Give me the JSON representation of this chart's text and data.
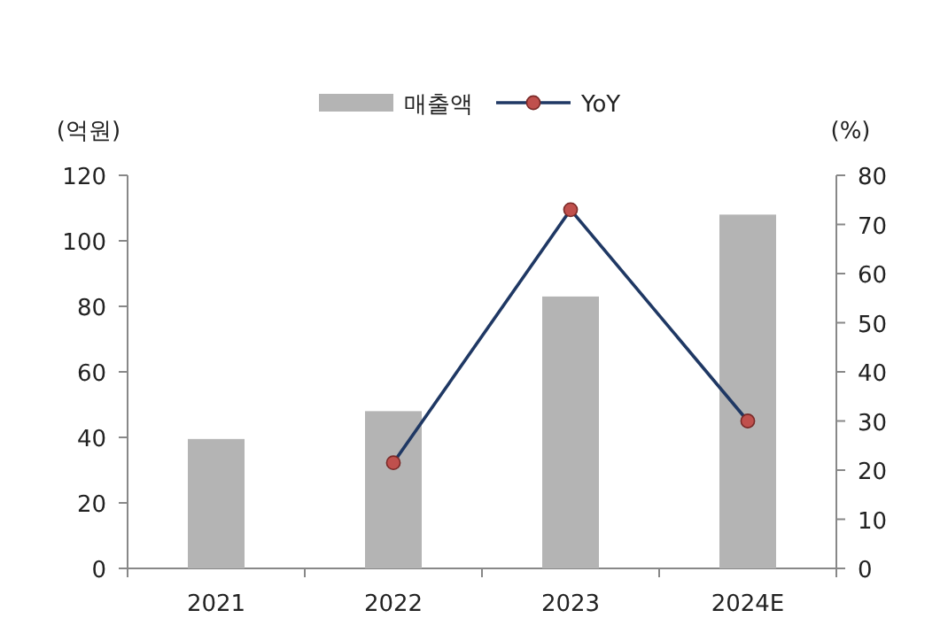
{
  "chart_data": {
    "type": "bar",
    "categories": [
      "2021",
      "2022",
      "2023",
      "2024E"
    ],
    "series": [
      {
        "name": "매출액",
        "color": "#b4b4b4",
        "values": [
          39.5,
          48,
          83,
          108
        ]
      },
      {
        "name": "YoY",
        "type": "line",
        "axis": "y2",
        "color": "#1f3864",
        "marker": "circle",
        "values": [
          null,
          21.5,
          73,
          30
        ]
      }
    ],
    "ylabel": "(억원)",
    "y2label": "(%)",
    "ylim": [
      0,
      120
    ],
    "yticks": [
      0,
      20,
      40,
      60,
      80,
      100,
      120
    ],
    "y2lim": [
      0,
      80
    ],
    "y2ticks": [
      0,
      10,
      20,
      30,
      40,
      50,
      60,
      70,
      80
    ],
    "legend": "top",
    "grid": false
  }
}
